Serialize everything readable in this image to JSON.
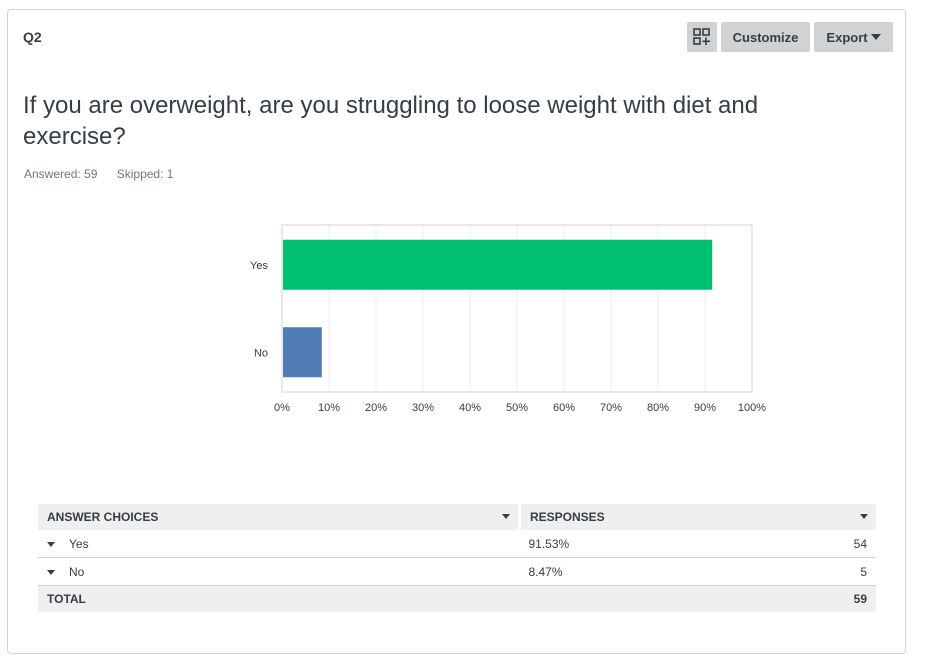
{
  "question": {
    "number": "Q2",
    "title": "If you are overweight, are you struggling to loose weight with diet and exercise?",
    "answered": "Answered: 59",
    "skipped": "Skipped: 1"
  },
  "toolbar": {
    "grid_icon": "grid-add-icon",
    "customize_label": "Customize",
    "export_label": "Export"
  },
  "colors": {
    "yes": "#00bf6f",
    "no": "#507cb6"
  },
  "chart_data": {
    "type": "bar",
    "orientation": "horizontal",
    "categories": [
      "Yes",
      "No"
    ],
    "values": [
      91.53,
      8.47
    ],
    "xlim": [
      0,
      100
    ],
    "x_ticks": [
      "0%",
      "10%",
      "20%",
      "30%",
      "40%",
      "50%",
      "60%",
      "70%",
      "80%",
      "90%",
      "100%"
    ],
    "grid": true
  },
  "table": {
    "headers": {
      "choices": "ANSWER CHOICES",
      "responses": "RESPONSES"
    },
    "rows": [
      {
        "choice": "Yes",
        "percent": "91.53%",
        "count": "54"
      },
      {
        "choice": "No",
        "percent": "8.47%",
        "count": "5"
      }
    ],
    "total": {
      "label": "TOTAL",
      "count": "59"
    }
  }
}
